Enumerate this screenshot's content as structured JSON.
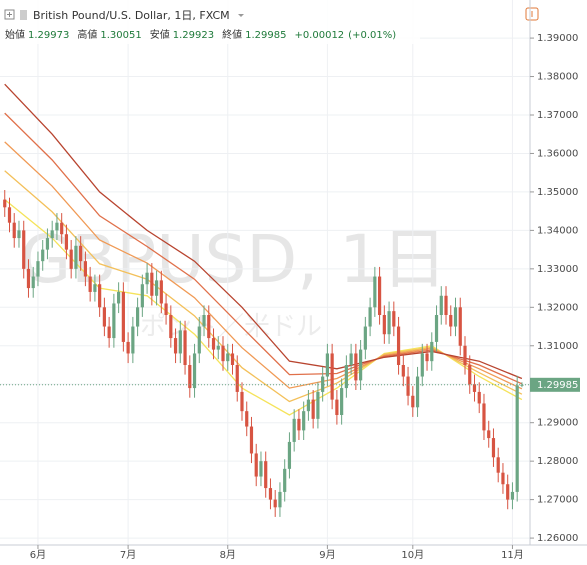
{
  "chart_data": {
    "type": "candlestick",
    "title": "British Pound/U.S. Dollar, 1日, FXCM",
    "ohlc_labels": {
      "open": "始値",
      "high": "高値",
      "low": "安値",
      "close": "終値"
    },
    "change": "+0.00012",
    "change_pct": "(+0.01%)",
    "up_color": "#6ba583",
    "down_color": "#d75442",
    "grid": true,
    "xlim": [
      -1,
      110.7
    ],
    "xticks": [
      {
        "value": 7,
        "label": "6月"
      },
      {
        "value": 26,
        "label": "7月"
      },
      {
        "value": 47,
        "label": "8月"
      },
      {
        "value": 68,
        "label": "9月"
      },
      {
        "value": 86,
        "label": "10月"
      },
      {
        "value": 107,
        "label": "11月"
      }
    ],
    "ylim": [
      1.2582,
      1.3999
    ],
    "yticks": [
      {
        "value": 1.26,
        "label": "1.26000"
      },
      {
        "value": 1.27,
        "label": "1.27000"
      },
      {
        "value": 1.28,
        "label": "1.28000"
      },
      {
        "value": 1.29,
        "label": "1.29000"
      },
      {
        "value": 1.3,
        "label": "1.30000"
      },
      {
        "value": 1.31,
        "label": "1.31000"
      },
      {
        "value": 1.32,
        "label": "1.32000"
      },
      {
        "value": 1.33,
        "label": "1.33000"
      },
      {
        "value": 1.34,
        "label": "1.34000"
      },
      {
        "value": 1.35,
        "label": "1.35000"
      },
      {
        "value": 1.36,
        "label": "1.36000"
      },
      {
        "value": 1.37,
        "label": "1.37000"
      },
      {
        "value": 1.38,
        "label": "1.38000"
      },
      {
        "value": 1.39,
        "label": "1.39000"
      }
    ],
    "open": [
      1.348,
      1.346,
      1.342,
      1.338,
      1.34,
      1.33,
      1.325,
      1.328,
      1.332,
      1.335,
      1.338,
      1.34,
      1.342,
      1.339,
      1.335,
      1.33,
      1.336,
      1.332,
      1.328,
      1.324,
      1.326,
      1.32,
      1.315,
      1.312,
      1.321,
      1.324,
      1.311,
      1.308,
      1.315,
      1.32,
      1.326,
      1.329,
      1.323,
      1.327,
      1.321,
      1.318,
      1.312,
      1.308,
      1.314,
      1.305,
      1.299,
      1.308,
      1.315,
      1.318,
      1.312,
      1.309,
      1.31,
      1.306,
      1.308,
      1.305,
      1.298,
      1.293,
      1.289,
      1.282,
      1.276,
      1.28,
      1.273,
      1.27,
      1.268,
      1.272,
      1.278,
      1.285,
      1.291,
      1.288,
      1.293,
      1.296,
      1.291,
      1.298,
      1.302,
      1.308,
      1.296,
      1.292,
      1.299,
      1.305,
      1.308,
      1.301,
      1.309,
      1.315,
      1.32,
      1.328,
      1.318,
      1.313,
      1.319,
      1.315,
      1.305,
      1.302,
      1.297,
      1.294,
      1.302,
      1.308,
      1.306,
      1.311,
      1.318,
      1.323,
      1.318,
      1.315,
      1.32,
      1.31,
      1.305,
      1.3,
      1.298,
      1.295,
      1.288,
      1.286,
      1.281,
      1.277,
      1.274,
      1.27,
      1.272,
      1.29973
    ],
    "high": [
      1.3505,
      1.3485,
      1.3445,
      1.3425,
      1.3425,
      1.3325,
      1.3305,
      1.3345,
      1.3375,
      1.3405,
      1.3425,
      1.3445,
      1.3445,
      1.3415,
      1.3375,
      1.3385,
      1.3385,
      1.3345,
      1.3305,
      1.3285,
      1.3285,
      1.3225,
      1.3175,
      1.3235,
      1.3265,
      1.3265,
      1.3135,
      1.3175,
      1.3225,
      1.3285,
      1.3315,
      1.3315,
      1.3295,
      1.3295,
      1.3235,
      1.3205,
      1.3145,
      1.3165,
      1.3165,
      1.3075,
      1.3105,
      1.3175,
      1.3205,
      1.3205,
      1.3145,
      1.3125,
      1.3125,
      1.3105,
      1.3105,
      1.3075,
      1.3005,
      1.2955,
      1.2915,
      1.2845,
      1.2825,
      1.2825,
      1.2755,
      1.2725,
      1.2745,
      1.2805,
      1.2875,
      1.2935,
      1.2935,
      1.2955,
      1.2985,
      1.2985,
      1.3005,
      1.3045,
      1.3105,
      1.3105,
      1.2985,
      1.3015,
      1.3075,
      1.3105,
      1.3105,
      1.3115,
      1.3175,
      1.3225,
      1.3305,
      1.3305,
      1.3205,
      1.3215,
      1.3215,
      1.3175,
      1.3075,
      1.3045,
      1.2995,
      1.3045,
      1.3105,
      1.3105,
      1.3135,
      1.3205,
      1.3255,
      1.3255,
      1.3205,
      1.3225,
      1.3225,
      1.3125,
      1.3075,
      1.3025,
      1.3005,
      1.2975,
      1.2905,
      1.2885,
      1.2835,
      1.2795,
      1.2765,
      1.2745,
      1.3022,
      1.30051
    ],
    "low": [
      1.3435,
      1.3395,
      1.3355,
      1.3355,
      1.3275,
      1.3225,
      1.3225,
      1.3255,
      1.3295,
      1.3325,
      1.3355,
      1.3375,
      1.3365,
      1.3325,
      1.3275,
      1.3275,
      1.3295,
      1.3255,
      1.3215,
      1.3215,
      1.3175,
      1.3125,
      1.3095,
      1.3095,
      1.3185,
      1.3085,
      1.3055,
      1.3055,
      1.3125,
      1.3175,
      1.3235,
      1.3205,
      1.3205,
      1.3185,
      1.3155,
      1.3095,
      1.3055,
      1.3055,
      1.3025,
      1.2965,
      1.2965,
      1.3055,
      1.3125,
      1.3095,
      1.3065,
      1.3065,
      1.3035,
      1.3035,
      1.3025,
      1.2955,
      1.2905,
      1.2865,
      1.2795,
      1.2735,
      1.2735,
      1.2705,
      1.2675,
      1.2655,
      1.2655,
      1.2695,
      1.2755,
      1.2825,
      1.2855,
      1.2855,
      1.2905,
      1.2885,
      1.2885,
      1.2955,
      1.2995,
      1.2935,
      1.2895,
      1.2895,
      1.2965,
      1.3025,
      1.2985,
      1.2985,
      1.3065,
      1.3125,
      1.3175,
      1.3155,
      1.3105,
      1.3105,
      1.3125,
      1.3025,
      1.2995,
      1.2945,
      1.2915,
      1.2915,
      1.2995,
      1.3035,
      1.3035,
      1.3085,
      1.3155,
      1.3155,
      1.3125,
      1.3125,
      1.3075,
      1.3025,
      1.2975,
      1.2955,
      1.2925,
      1.2855,
      1.2835,
      1.2785,
      1.2745,
      1.2715,
      1.2675,
      1.2675,
      1.2695,
      1.29923
    ],
    "close": [
      1.346,
      1.342,
      1.338,
      1.34,
      1.33,
      1.325,
      1.328,
      1.332,
      1.335,
      1.338,
      1.34,
      1.342,
      1.339,
      1.335,
      1.33,
      1.336,
      1.332,
      1.328,
      1.324,
      1.326,
      1.32,
      1.315,
      1.312,
      1.321,
      1.324,
      1.311,
      1.308,
      1.315,
      1.32,
      1.326,
      1.329,
      1.323,
      1.327,
      1.321,
      1.318,
      1.312,
      1.308,
      1.314,
      1.305,
      1.299,
      1.308,
      1.315,
      1.318,
      1.312,
      1.309,
      1.31,
      1.306,
      1.308,
      1.305,
      1.298,
      1.293,
      1.289,
      1.282,
      1.276,
      1.28,
      1.273,
      1.27,
      1.268,
      1.272,
      1.278,
      1.285,
      1.291,
      1.288,
      1.293,
      1.296,
      1.291,
      1.298,
      1.302,
      1.308,
      1.296,
      1.292,
      1.299,
      1.305,
      1.308,
      1.301,
      1.309,
      1.315,
      1.32,
      1.328,
      1.318,
      1.313,
      1.319,
      1.315,
      1.305,
      1.302,
      1.297,
      1.294,
      1.302,
      1.308,
      1.306,
      1.311,
      1.318,
      1.323,
      1.318,
      1.315,
      1.32,
      1.31,
      1.305,
      1.3,
      1.298,
      1.295,
      1.288,
      1.286,
      1.281,
      1.277,
      1.274,
      1.27,
      1.272,
      1.2997,
      1.29985
    ],
    "ma_x": [
      0,
      10,
      20,
      30,
      40,
      50,
      60,
      70,
      80,
      90,
      100,
      109
    ],
    "series": [
      {
        "color": "#f5e35a",
        "values": [
          1.348,
          1.338,
          1.325,
          1.323,
          1.313,
          1.299,
          1.292,
          1.299,
          1.308,
          1.31,
          1.302,
          1.296
        ]
      },
      {
        "color": "#f3c05a",
        "values": [
          1.3555,
          1.3448,
          1.3313,
          1.3273,
          1.3178,
          1.3043,
          1.2955,
          1.3003,
          1.3078,
          1.3096,
          1.303,
          1.2974
        ]
      },
      {
        "color": "#f09a55",
        "values": [
          1.363,
          1.3515,
          1.3375,
          1.3315,
          1.3225,
          1.3095,
          1.299,
          1.3015,
          1.3075,
          1.3093,
          1.304,
          1.2988
        ]
      },
      {
        "color": "#e0704a",
        "values": [
          1.3705,
          1.3583,
          1.3438,
          1.3358,
          1.3273,
          1.3148,
          1.3025,
          1.3028,
          1.3073,
          1.3089,
          1.305,
          1.3001
        ]
      },
      {
        "color": "#b8442f",
        "values": [
          1.378,
          1.365,
          1.35,
          1.34,
          1.332,
          1.32,
          1.306,
          1.304,
          1.307,
          1.3085,
          1.306,
          1.3015
        ]
      }
    ]
  },
  "watermark": {
    "symbol": "GBPUSD, 1日",
    "name": "ポンド／米ドル"
  }
}
